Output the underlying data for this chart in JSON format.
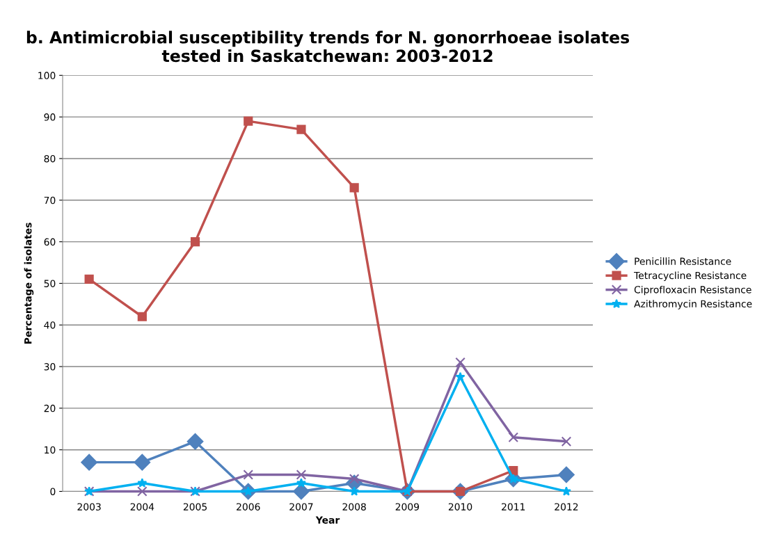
{
  "chart_data": {
    "type": "line",
    "title": "b. Antimicrobial susceptibility trends for N. gonorrhoeae isolates\ntested in Saskatchewan: 2003-2012",
    "xlabel": "Year",
    "ylabel": "Percentage of isolates",
    "categories": [
      "2003",
      "2004",
      "2005",
      "2006",
      "2007",
      "2008",
      "2009",
      "2010",
      "2011",
      "2012"
    ],
    "series": [
      {
        "name": "Penicillin Resistance",
        "color": "#4f81bd",
        "marker": "diamond",
        "values": [
          7,
          7,
          12,
          0,
          0,
          2,
          0,
          0,
          3,
          4
        ]
      },
      {
        "name": "Tetracycline Resistance",
        "color": "#c0504d",
        "marker": "square",
        "values": [
          51,
          42,
          60,
          89,
          87,
          73,
          0,
          0,
          5,
          null
        ]
      },
      {
        "name": "Ciprofloxacin Resistance",
        "color": "#8064a2",
        "marker": "cross",
        "values": [
          0,
          0,
          0,
          4,
          4,
          3,
          0,
          31,
          13,
          12
        ]
      },
      {
        "name": "Azithromycin Resistance",
        "color": "#00b0f0",
        "marker": "star",
        "values": [
          0,
          2,
          0,
          0,
          2,
          0,
          0,
          27.5,
          3,
          0
        ]
      }
    ],
    "ylim": [
      0,
      100
    ],
    "yticks": [
      0,
      10,
      20,
      30,
      40,
      50,
      60,
      70,
      80,
      90,
      100
    ],
    "grid": "y",
    "legend": "right",
    "line_style": "solid"
  }
}
